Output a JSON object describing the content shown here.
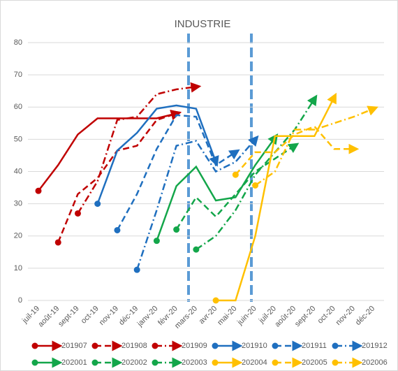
{
  "chart_data": {
    "type": "line",
    "title": "INDUSTRIE",
    "categories": [
      "juil-19",
      "août-19",
      "sept-19",
      "oct-19",
      "nov-19",
      "déc-19",
      "janv-20",
      "févr-20",
      "mars-20",
      "avr-20",
      "mai-20",
      "juin-20",
      "juil-20",
      "août-20",
      "sept-20",
      "oct-20",
      "nov-20",
      "déc-20"
    ],
    "ylim": [
      0,
      80
    ],
    "yticks": [
      0,
      10,
      20,
      30,
      40,
      50,
      60,
      70,
      80
    ],
    "grid": true,
    "series": [
      {
        "name": "201907",
        "color": "#c00000",
        "line_style": "solid",
        "values": [
          34,
          42,
          51.5,
          56.5,
          56.5,
          56.5,
          56.5,
          58,
          null,
          null,
          null,
          null,
          null,
          null,
          null,
          null,
          null,
          null
        ]
      },
      {
        "name": "201908",
        "color": "#c00000",
        "line_style": "dashed",
        "values": [
          null,
          18,
          33,
          38,
          46.5,
          48,
          56,
          58,
          null,
          null,
          null,
          null,
          null,
          null,
          null,
          null,
          null,
          null
        ]
      },
      {
        "name": "201909",
        "color": "#c00000",
        "line_style": "dashdot",
        "values": [
          null,
          null,
          27,
          37,
          56,
          57,
          64,
          65.5,
          66.3,
          null,
          null,
          null,
          null,
          null,
          null,
          null,
          null,
          null
        ]
      },
      {
        "name": "201910",
        "color": "#1f6fbf",
        "line_style": "solid",
        "values": [
          null,
          null,
          null,
          30,
          46.5,
          52,
          59.5,
          60.5,
          59.5,
          43,
          null,
          null,
          null,
          null,
          null,
          null,
          null,
          null
        ]
      },
      {
        "name": "201911",
        "color": "#1f6fbf",
        "line_style": "dashed",
        "values": [
          null,
          null,
          null,
          null,
          21.8,
          33,
          47,
          57.5,
          57,
          42,
          46,
          null,
          null,
          null,
          null,
          null,
          null,
          null
        ]
      },
      {
        "name": "201912",
        "color": "#1f6fbf",
        "line_style": "dashdot",
        "values": [
          null,
          null,
          null,
          null,
          null,
          9.5,
          28,
          48,
          49.5,
          40,
          43,
          50,
          null,
          null,
          null,
          null,
          null,
          null
        ]
      },
      {
        "name": "202001",
        "color": "#13a64a",
        "line_style": "solid",
        "values": [
          null,
          null,
          null,
          null,
          null,
          null,
          18.5,
          35.5,
          41.5,
          31,
          32,
          42,
          50.5,
          null,
          null,
          null,
          null,
          null
        ]
      },
      {
        "name": "202002",
        "color": "#13a64a",
        "line_style": "dashed",
        "values": [
          null,
          null,
          null,
          null,
          null,
          null,
          null,
          22,
          32,
          26,
          33,
          40,
          44,
          48,
          null,
          null,
          null,
          null
        ]
      },
      {
        "name": "202003",
        "color": "#13a64a",
        "line_style": "dashdot",
        "values": [
          null,
          null,
          null,
          null,
          null,
          null,
          null,
          null,
          15.8,
          20,
          28,
          39,
          46,
          53,
          62.5,
          null,
          null,
          null
        ]
      },
      {
        "name": "202004",
        "color": "#ffc000",
        "line_style": "solid",
        "values": [
          null,
          null,
          null,
          null,
          null,
          null,
          null,
          null,
          null,
          0,
          0,
          20,
          51,
          51,
          51,
          63,
          null,
          null
        ]
      },
      {
        "name": "202005",
        "color": "#ffc000",
        "line_style": "dashed",
        "values": [
          null,
          null,
          null,
          null,
          null,
          null,
          null,
          null,
          null,
          null,
          39,
          46,
          46,
          51.5,
          54,
          47,
          47,
          null
        ]
      },
      {
        "name": "202006",
        "color": "#ffc000",
        "line_style": "dashdot",
        "values": [
          null,
          null,
          null,
          null,
          null,
          null,
          null,
          null,
          null,
          null,
          null,
          35.7,
          40,
          53,
          53,
          55,
          57,
          59.5
        ]
      }
    ]
  }
}
